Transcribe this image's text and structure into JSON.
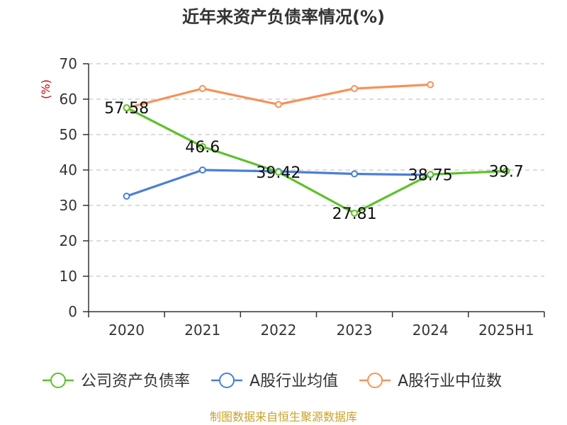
{
  "chart_data": {
    "type": "line",
    "title": "近年来资产负债率情况(%)",
    "ylabel": "(%)",
    "xlabel": "",
    "ylim": [
      0,
      70
    ],
    "yticks": [
      0,
      10,
      20,
      30,
      40,
      50,
      60,
      70
    ],
    "categories": [
      "2020",
      "2021",
      "2022",
      "2023",
      "2024",
      "2025H1"
    ],
    "grid": true,
    "legend_position": "bottom",
    "series": [
      {
        "name": "公司资产负债率",
        "color": "#5ec12a",
        "values": [
          57.58,
          46.6,
          39.42,
          27.81,
          38.75,
          39.7
        ],
        "labels": [
          "57.58",
          "46.6",
          "39.42",
          "27.81",
          "38.75",
          "39.7"
        ]
      },
      {
        "name": "A股行业均值",
        "color": "#4a7fd6",
        "values": [
          32.6,
          40.0,
          39.6,
          38.9,
          38.6,
          null
        ]
      },
      {
        "name": "A股行业中位数",
        "color": "#f5925a",
        "values": [
          57.5,
          63.0,
          58.5,
          63.0,
          64.1,
          null
        ]
      }
    ],
    "source": "制图数据来自恒生聚源数据库"
  }
}
